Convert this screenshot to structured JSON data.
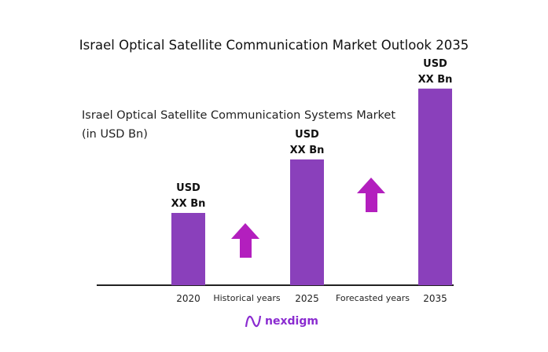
{
  "title": "Israel Optical Satellite Communication Market Outlook 2035",
  "subtitle": "Israel Optical Satellite Communication Systems Market (in USD Bn)",
  "logo_text": "nexdigm",
  "colors": {
    "bar": "#8a40bb",
    "arrow": "#b31fbe",
    "axis": "#222222",
    "logo": "#8a2bd0"
  },
  "chart_data": {
    "type": "bar",
    "title": "Israel Optical Satellite Communication Market Outlook 2035",
    "ylabel": "Israel Optical Satellite Communication Systems Market (in USD Bn)",
    "categories": [
      "2020",
      "2025",
      "2035"
    ],
    "values_relative": [
      1.0,
      1.74,
      2.72
    ],
    "data_labels": [
      [
        "USD",
        "XX Bn"
      ],
      [
        "USD",
        "XX Bn"
      ],
      [
        "USD",
        "XX Bn"
      ]
    ],
    "period_labels": [
      "Historical years",
      "Forecasted years"
    ],
    "arrows": [
      "up-arrow-icon",
      "up-arrow-icon"
    ],
    "grid": false,
    "legend": "none"
  }
}
